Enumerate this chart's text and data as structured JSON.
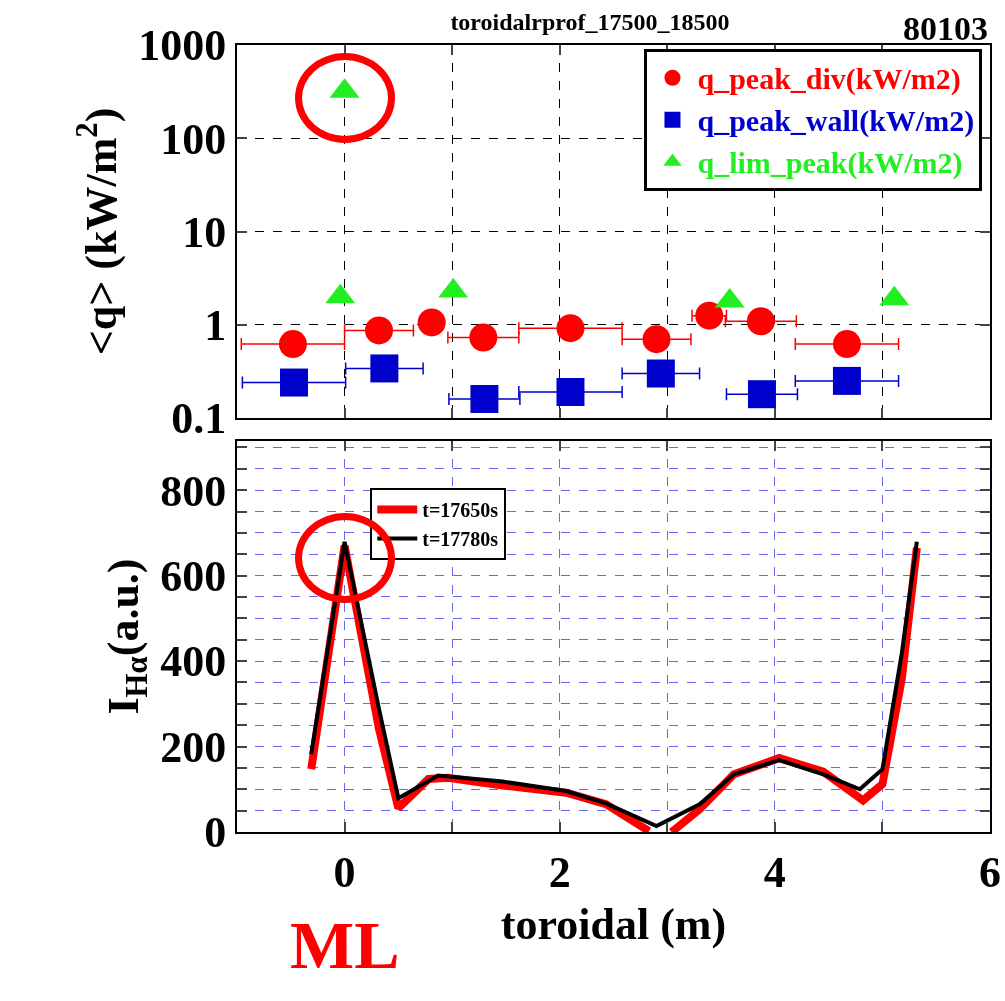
{
  "chart_data": [
    {
      "type": "scatter",
      "title": "toroidalrprof_17500_18500",
      "annotations": [
        "80103"
      ],
      "ylabel": "<q> (kW/m$^{2}$)",
      "log": "y",
      "xlim": [
        -1,
        6
      ],
      "xticks": [
        {
          "value": 0,
          "label": null
        },
        {
          "value": 1,
          "label": null
        },
        {
          "value": 2,
          "label": null
        },
        {
          "value": 3,
          "label": null
        },
        {
          "value": 4,
          "label": null
        },
        {
          "value": 5,
          "label": null
        }
      ],
      "ylim": [
        0.1,
        1000
      ],
      "yticks": [
        0.1,
        1,
        10,
        100,
        1000
      ],
      "tick_labels": "y",
      "grid": true,
      "legend": "top right",
      "series": [
        {
          "name": "q_peak_div(kW/m2)",
          "color": "#ff0000",
          "marker": "circle",
          "x": [
            -0.48,
            0.32,
            0.81,
            1.29,
            2.1,
            2.9,
            3.39,
            3.87,
            4.67
          ],
          "values": [
            0.62,
            0.87,
            1.06,
            0.73,
            0.92,
            0.7,
            1.25,
            1.09,
            0.62
          ],
          "xerrors": [
            0.48,
            0.32,
            null,
            0.33,
            0.48,
            0.32,
            0.16,
            0.33,
            0.48
          ]
        },
        {
          "name": "q_peak_wall(kW/m2)",
          "color": "#0000cc",
          "marker": "square",
          "x": [
            -0.47,
            0.37,
            1.3,
            2.1,
            2.94,
            3.88,
            4.67
          ],
          "values": [
            0.24,
            0.34,
            0.16,
            0.19,
            0.3,
            0.18,
            0.25
          ],
          "xerrors": [
            0.48,
            0.36,
            0.33,
            0.48,
            0.36,
            0.33,
            0.48
          ]
        },
        {
          "name": "q_lim_peak(kW/m2)",
          "color": "#22ee22",
          "marker": "triangle",
          "x": [
            0,
            -0.04,
            1.01,
            3.58,
            5.11
          ],
          "values": [
            320,
            2.0,
            2.3,
            1.8,
            1.9
          ]
        }
      ]
    },
    {
      "type": "line",
      "xlabel": "toroidal (m)",
      "ylabel": "I$_{Hα}$(a.u.)",
      "annotations": [
        "ML"
      ],
      "xlim": [
        -1,
        6
      ],
      "xticks": [
        0,
        {
          "value": 1,
          "label": null
        },
        2,
        {
          "value": 3,
          "label": null
        },
        4,
        {
          "value": 5,
          "label": null
        },
        6
      ],
      "ylim": [
        0,
        915
      ],
      "yticks": [
        0,
        {
          "value": 50,
          "label": null
        },
        {
          "value": 100,
          "label": null
        },
        {
          "value": 150,
          "label": null
        },
        200,
        {
          "value": 250,
          "label": null
        },
        {
          "value": 300,
          "label": null
        },
        {
          "value": 350,
          "label": null
        },
        400,
        {
          "value": 450,
          "label": null
        },
        {
          "value": 500,
          "label": null
        },
        {
          "value": 550,
          "label": null
        },
        600,
        {
          "value": 650,
          "label": null
        },
        {
          "value": 700,
          "label": null
        },
        {
          "value": 750,
          "label": null
        },
        800,
        {
          "value": 850,
          "label": null
        },
        {
          "value": 900,
          "label": null
        }
      ],
      "grid": true,
      "legend": "top left",
      "line_style": "solid",
      "marker": "none",
      "series": [
        {
          "name": "t=17650s",
          "color": "#ff0000",
          "x": [
            -0.31,
            0.0,
            0.32,
            0.5,
            0.78,
            0.96,
            1.47,
            2.06,
            2.43,
            2.83,
            2.93,
            3.04,
            3.3,
            3.62,
            4.04,
            4.45,
            4.82,
            5.0,
            5.18,
            5.32
          ],
          "values": [
            147,
            670,
            241,
            56,
            124,
            127,
            109,
            92,
            65,
            2,
            null,
            0,
            53,
            135,
            173,
            141,
            74,
            112,
            359,
            665
          ]
        },
        {
          "name": "t=17780s",
          "color": "#000000",
          "x": [
            -0.31,
            0.0,
            0.32,
            0.5,
            0.87,
            1.47,
            2.06,
            2.43,
            2.9,
            3.3,
            3.62,
            4.04,
            4.45,
            4.79,
            5.0,
            5.18,
            5.32
          ],
          "values": [
            182,
            679,
            288,
            79,
            132,
            118,
            96,
            67,
            14,
            65,
            135,
            168,
            135,
            100,
            147,
            418,
            679
          ]
        }
      ]
    }
  ]
}
